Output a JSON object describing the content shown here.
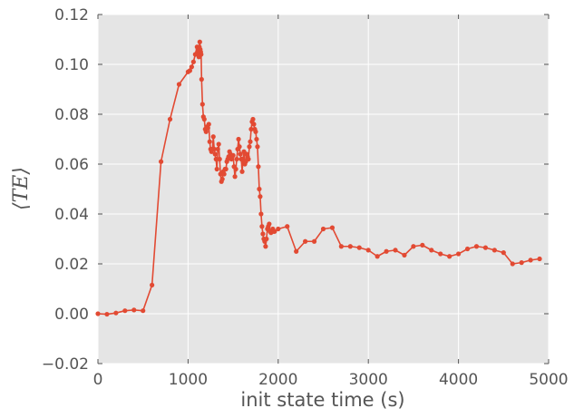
{
  "chart_data": {
    "type": "line",
    "title": "",
    "xlabel": "init state time (s)",
    "ylabel": "⟨TE⟩",
    "xlim": [
      0,
      5000
    ],
    "ylim": [
      -0.02,
      0.12
    ],
    "grid": true,
    "legend": "none",
    "x_ticks": [
      "0",
      "1000",
      "2000",
      "3000",
      "4000",
      "5000"
    ],
    "y_ticks": [
      "−0.02",
      "0.00",
      "0.02",
      "0.04",
      "0.06",
      "0.08",
      "0.10",
      "0.12"
    ],
    "colors": {
      "series": "#E24A33",
      "plot_bg": "#E5E5E5",
      "grid": "#FFFFFF",
      "text": "#555555"
    },
    "series": [
      {
        "x": [
          0,
          100,
          200,
          300,
          400,
          500,
          600,
          700,
          800,
          900,
          1000,
          1020,
          1040,
          1060,
          1080,
          1100,
          1105,
          1110,
          1115,
          1120,
          1125,
          1130,
          1135,
          1140,
          1145,
          1150,
          1160,
          1170,
          1180,
          1190,
          1200,
          1210,
          1220,
          1230,
          1240,
          1250,
          1260,
          1270,
          1280,
          1290,
          1300,
          1310,
          1320,
          1330,
          1340,
          1350,
          1360,
          1370,
          1380,
          1390,
          1400,
          1410,
          1420,
          1430,
          1440,
          1450,
          1460,
          1470,
          1480,
          1490,
          1500,
          1510,
          1520,
          1530,
          1540,
          1550,
          1560,
          1570,
          1580,
          1590,
          1600,
          1610,
          1620,
          1630,
          1640,
          1650,
          1660,
          1670,
          1680,
          1690,
          1700,
          1710,
          1720,
          1730,
          1740,
          1750,
          1760,
          1770,
          1780,
          1790,
          1800,
          1810,
          1820,
          1830,
          1840,
          1850,
          1860,
          1870,
          1880,
          1890,
          1900,
          1910,
          1920,
          1930,
          1940,
          1950,
          1960,
          2000,
          2100,
          2200,
          2300,
          2400,
          2500,
          2600,
          2700,
          2800,
          2900,
          3000,
          3100,
          3200,
          3300,
          3400,
          3500,
          3600,
          3700,
          3800,
          3900,
          4000,
          4100,
          4200,
          4300,
          4400,
          4500,
          4600,
          4700,
          4800,
          4900
        ],
        "y": [
          0.0,
          -0.0002,
          0.0003,
          0.0012,
          0.0015,
          0.0012,
          0.0115,
          0.061,
          0.078,
          0.092,
          0.097,
          0.0975,
          0.099,
          0.101,
          0.104,
          0.107,
          0.105,
          0.106,
          0.104,
          0.103,
          0.107,
          0.109,
          0.106,
          0.105,
          0.104,
          0.094,
          0.084,
          0.079,
          0.078,
          0.074,
          0.073,
          0.075,
          0.0745,
          0.076,
          0.069,
          0.066,
          0.065,
          0.066,
          0.071,
          0.066,
          0.064,
          0.062,
          0.058,
          0.066,
          0.068,
          0.062,
          0.056,
          0.053,
          0.054,
          0.057,
          0.056,
          0.058,
          0.058,
          0.061,
          0.062,
          0.063,
          0.065,
          0.064,
          0.062,
          0.063,
          0.0635,
          0.059,
          0.055,
          0.058,
          0.062,
          0.066,
          0.07,
          0.067,
          0.064,
          0.062,
          0.057,
          0.062,
          0.065,
          0.06,
          0.061,
          0.064,
          0.063,
          0.062,
          0.067,
          0.069,
          0.074,
          0.077,
          0.078,
          0.076,
          0.074,
          0.073,
          0.07,
          0.067,
          0.059,
          0.05,
          0.047,
          0.04,
          0.035,
          0.032,
          0.03,
          0.029,
          0.027,
          0.03,
          0.034,
          0.035,
          0.036,
          0.033,
          0.0325,
          0.033,
          0.034,
          0.033,
          0.033,
          0.034,
          0.035,
          0.025,
          0.029,
          0.029,
          0.034,
          0.0345,
          0.027,
          0.027,
          0.0265,
          0.0255,
          0.023,
          0.025,
          0.0255,
          0.0235,
          0.027,
          0.0275,
          0.0255,
          0.024,
          0.023,
          0.024,
          0.026,
          0.027,
          0.0265,
          0.0255,
          0.0245,
          0.02,
          0.0205,
          0.0215,
          0.022
        ]
      }
    ]
  }
}
